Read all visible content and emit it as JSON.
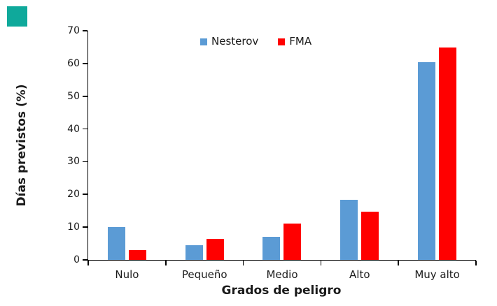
{
  "figure": {
    "background": "#ffffff",
    "corner_swatch_color": "#0fa99b"
  },
  "chart_data": {
    "type": "bar",
    "title": "",
    "categories": [
      "Nulo",
      "Pequeño",
      "Medio",
      "Alto",
      "Muy alto"
    ],
    "series": [
      {
        "name": "Nesterov",
        "color": "#5b9bd5",
        "values": [
          10,
          4.5,
          7,
          18.3,
          60.5
        ]
      },
      {
        "name": "FMA",
        "color": "#ff0000",
        "values": [
          2.9,
          6.5,
          11.2,
          14.7,
          64.8
        ]
      }
    ],
    "xlabel": "Grados de peligro",
    "ylabel": "Días previstos (%)",
    "ylim": [
      0,
      70
    ],
    "yticks": [
      0,
      10,
      20,
      30,
      40,
      50,
      60,
      70
    ],
    "grid": false,
    "legend_position": "top-center",
    "axis_color": "#000000",
    "text_color": "#1a1a1a"
  }
}
